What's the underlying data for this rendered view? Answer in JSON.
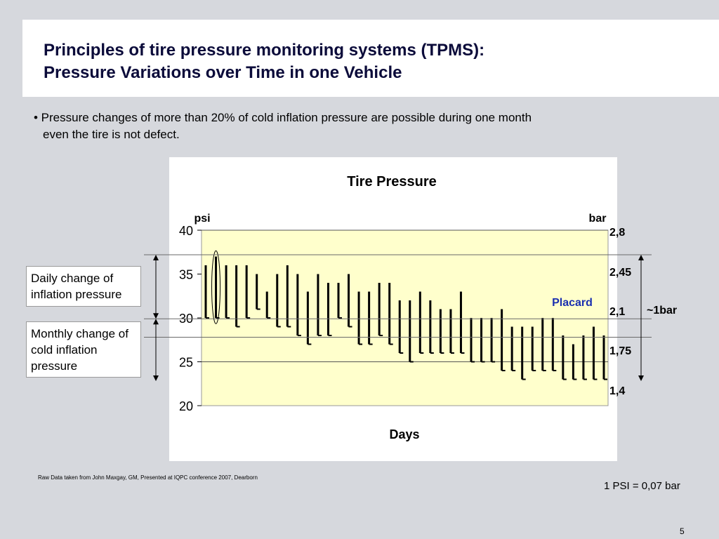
{
  "slide": {
    "title_line1": "Principles of tire pressure monitoring systems (TPMS):",
    "title_line2": "Pressure Variations over Time in one Vehicle",
    "bullet_line1": "• Pressure changes of more than 20% of cold inflation pressure are possible during one month",
    "bullet_line2": "even the tire is not defect.",
    "daily_box": "Daily change of inflation pressure",
    "monthly_box": "Monthly change of cold inflation pressure",
    "source_note": "Raw Data taken from John Maxgay, GM, Presented at IQPC conference 2007, Dearborn",
    "conversion": "1 PSI = 0,07 bar",
    "page_number": "5"
  },
  "colors": {
    "plot_bg": "#ffffcc",
    "placard_text": "#1a2fb0",
    "bar_color": "#000000"
  },
  "chart_data": {
    "type": "bar",
    "title": "Tire Pressure",
    "xlabel": "Days",
    "ylabel_left": "psi",
    "ylabel_right": "bar",
    "ylim": [
      20,
      40
    ],
    "yticks": [
      20,
      25,
      30,
      35,
      40
    ],
    "ytick_labels": [
      "20",
      "25",
      "30",
      "35",
      "40"
    ],
    "right_axis_labels": [
      {
        "value": 40,
        "label": "2,8"
      },
      {
        "value": 35,
        "label": "2,45"
      },
      {
        "value": 30,
        "label": "2,1"
      },
      {
        "value": 25,
        "label": "1,75"
      },
      {
        "value": 20,
        "label": "1,4"
      }
    ],
    "reference_lines": [
      37.2,
      29.9,
      27.8,
      25,
      40
    ],
    "placard_label": "Placard",
    "range_label": "~1bar",
    "days_hot": [
      36,
      37,
      36,
      36,
      36,
      35,
      33,
      35,
      36,
      35,
      33,
      35,
      34,
      34,
      35,
      33,
      33,
      34,
      34,
      32,
      32,
      33,
      32,
      31,
      31,
      33,
      30,
      30,
      30,
      31,
      29,
      29,
      29,
      30,
      30,
      28,
      27,
      28,
      29,
      28
    ],
    "days_cold": [
      30,
      30,
      30,
      29,
      30,
      31,
      30,
      29,
      29,
      28,
      27,
      28,
      28,
      30,
      29,
      27,
      27,
      28,
      27,
      26,
      25,
      26,
      26,
      26,
      26,
      26,
      25,
      25,
      25,
      24,
      24,
      23,
      24,
      24,
      24,
      23,
      23,
      23,
      23,
      23
    ],
    "highlight_day": 2
  }
}
